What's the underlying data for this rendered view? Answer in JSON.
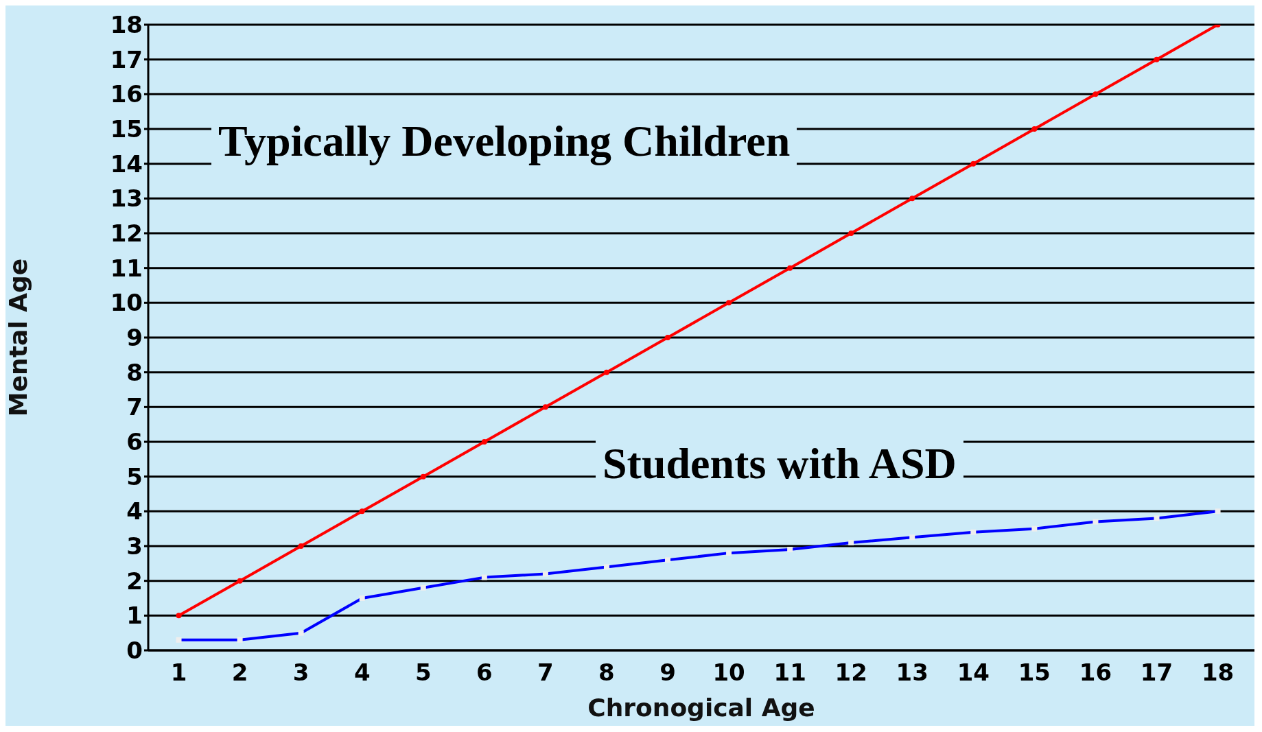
{
  "chart_data": {
    "type": "line",
    "xlabel": "Chronogical Age",
    "ylabel": "Mental Age",
    "x": [
      1,
      2,
      3,
      4,
      5,
      6,
      7,
      8,
      9,
      10,
      11,
      12,
      13,
      14,
      15,
      16,
      17,
      18
    ],
    "series": [
      {
        "color": "#ff0000",
        "marker": "circle",
        "values": [
          1,
          2,
          3,
          4,
          5,
          6,
          7,
          8,
          9,
          10,
          11,
          12,
          13,
          14,
          15,
          16,
          17,
          18
        ]
      },
      {
        "color": "#0000ff",
        "marker": "square",
        "values": [
          0.3,
          0.3,
          0.5,
          1.5,
          1.8,
          2.1,
          2.2,
          2.4,
          2.6,
          2.8,
          2.9,
          3.1,
          3.25,
          3.4,
          3.5,
          3.7,
          3.8,
          4.0
        ]
      }
    ],
    "xlim": [
      0.5,
      18.6
    ],
    "xticks": [
      1,
      2,
      3,
      4,
      5,
      6,
      7,
      8,
      9,
      10,
      11,
      12,
      13,
      14,
      15,
      16,
      17,
      18
    ],
    "ylim": [
      0,
      18
    ],
    "yticks": [
      0,
      1,
      2,
      3,
      4,
      5,
      6,
      7,
      8,
      9,
      10,
      11,
      12,
      13,
      14,
      15,
      16,
      17,
      18
    ],
    "grid": "y",
    "line_style": "solid",
    "annotations": [
      "Typically Developing Children",
      "Students with ASD"
    ]
  }
}
